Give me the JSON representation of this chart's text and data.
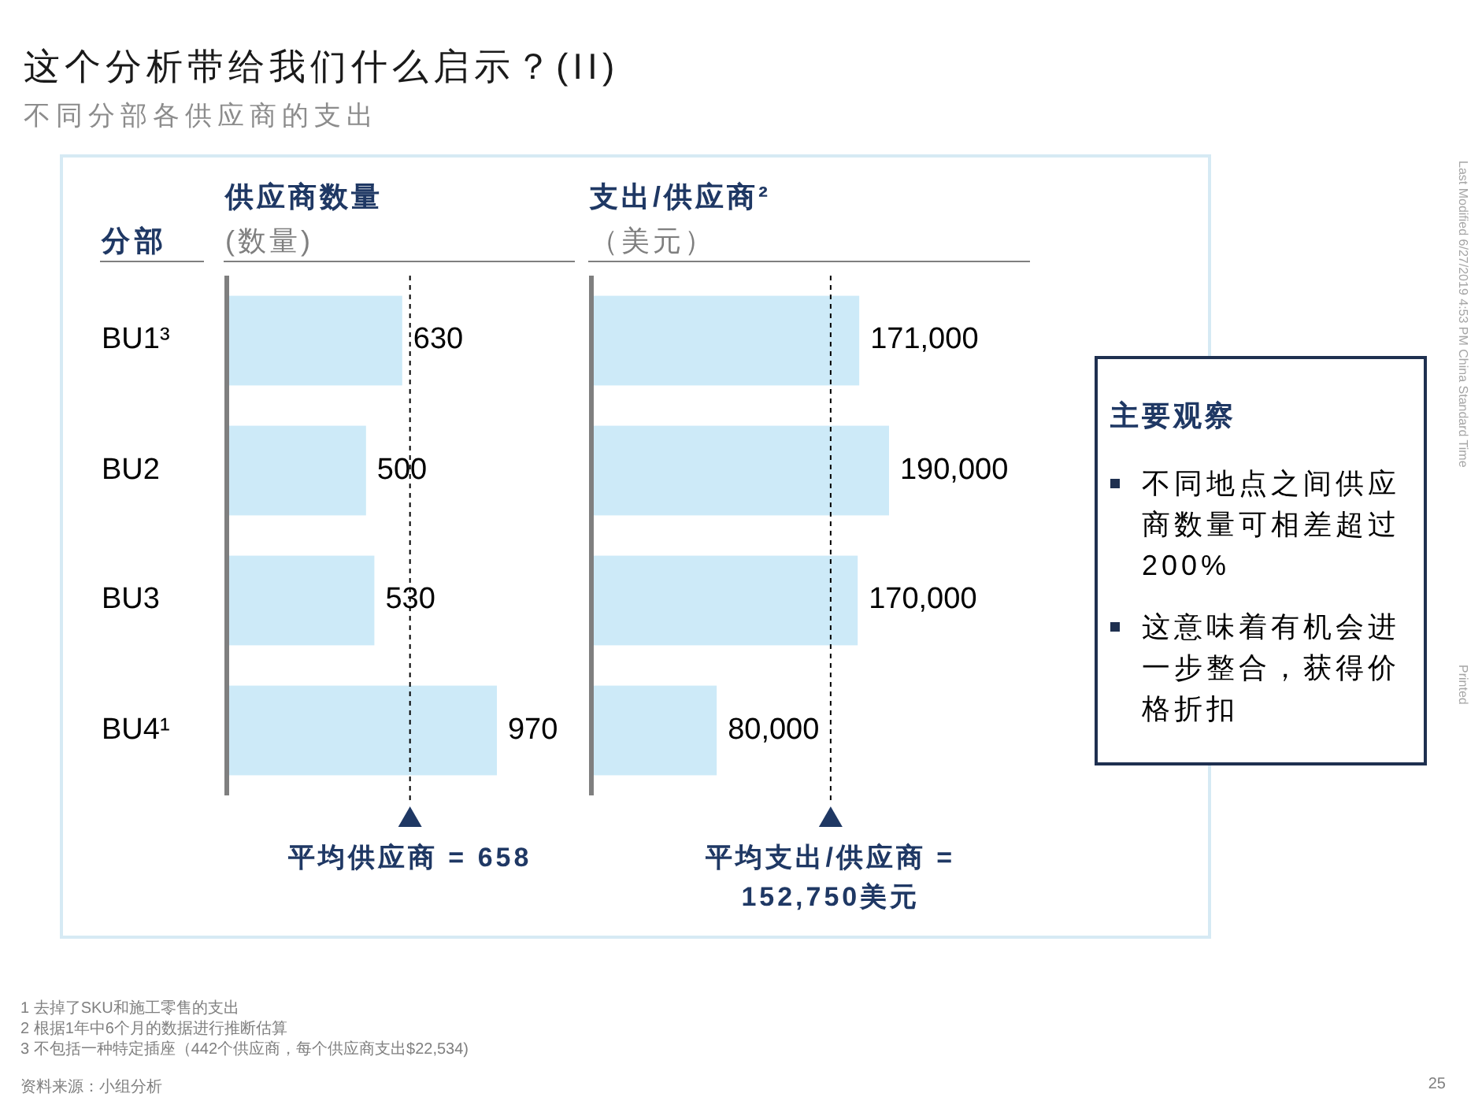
{
  "chart_data": [
    {
      "type": "other",
      "title": "这个分析带给我们什么启示？(II)",
      "subtitle": "不同分部各供应商的支出"
    },
    {
      "type": "bar",
      "orientation": "horizontal",
      "title": "供应商数量",
      "subtitle": "(数量)",
      "ylabel": "分部",
      "categories": [
        "BU1³",
        "BU2",
        "BU3",
        "BU4¹"
      ],
      "values": [
        630,
        500,
        530,
        970
      ],
      "color": "#cdeaf8",
      "xlim": [
        0,
        1250
      ],
      "data_labels": true,
      "tick_labels": "y",
      "ref_lines": [
        {
          "axis": "x",
          "value": 658,
          "label": "平均供应商 = 658",
          "line_style": "dashed",
          "color": "#000000"
        }
      ]
    },
    {
      "type": "bar",
      "orientation": "horizontal",
      "title": "支出/供应商²",
      "subtitle": "（美元）",
      "values": [
        171000,
        190000,
        170000,
        80000
      ],
      "color": "#cdeaf8",
      "xlim": [
        0,
        280000
      ],
      "value_labels": [
        "171,000",
        "190,000",
        "170,000",
        "80,000"
      ],
      "ref_lines": [
        {
          "axis": "x",
          "value": 152750,
          "label": "平均支出/供应商 = 152,750美元",
          "line_style": "dashed",
          "color": "#000000"
        }
      ]
    },
    {
      "type": "other",
      "title": "主要观察",
      "annotations": [
        "不同地点之间供应商数量可相差超过200%",
        "这意味着有机会进一步整合，获得价格折扣"
      ]
    },
    {
      "type": "other",
      "annotations": [
        "Last Modified 6/27/2019 4:53 PM China Standard Time",
        "Printed"
      ]
    },
    {
      "type": "other",
      "annotations": [
        "1 去掉了SKU和施工零售的支出",
        "2 根据1年中6个月的数据进行推断估算",
        "3 不包括一种特定插座（442个供应商，每个供应商支出$22,534)"
      ]
    },
    {
      "type": "other",
      "annotations": [
        "资料来源：小组分析",
        "25"
      ]
    }
  ]
}
